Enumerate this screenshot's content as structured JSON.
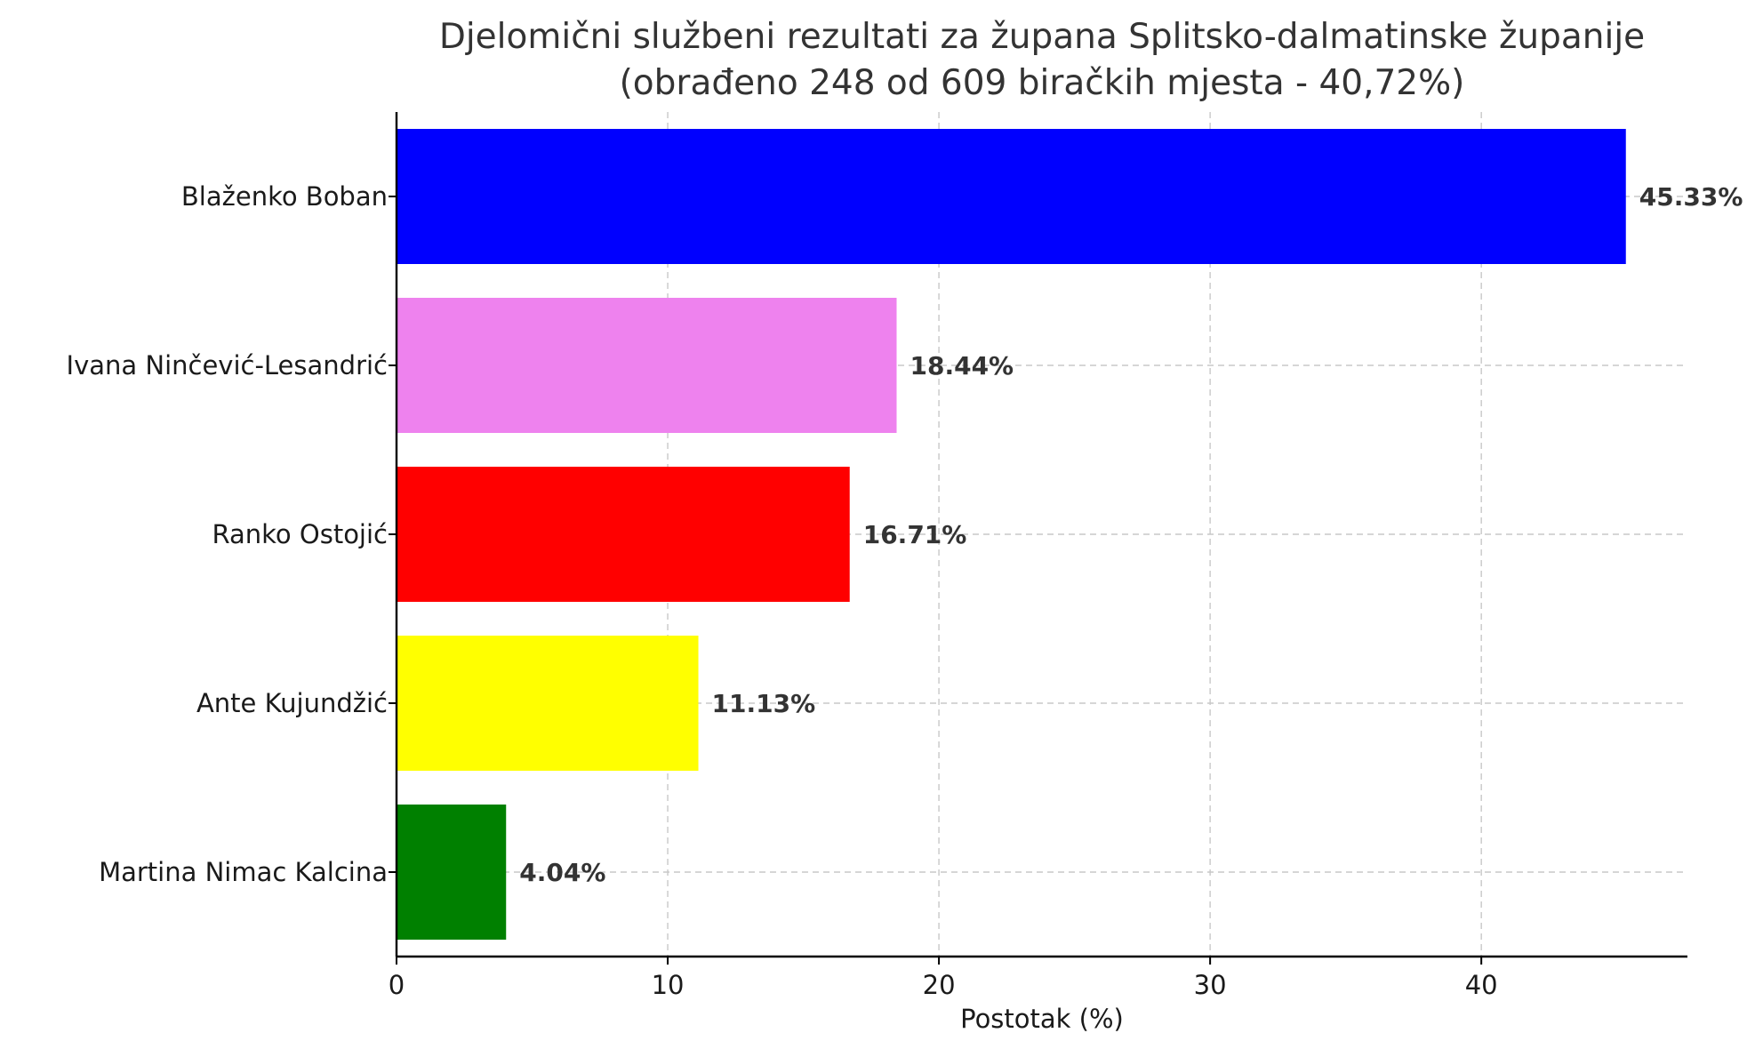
{
  "chart_data": {
    "type": "bar",
    "orientation": "horizontal",
    "title_lines": [
      "Djelomični službeni rezultati za župana Splitsko-dalmatinske županije",
      "(obrađeno 248 od 609 biračkih mjesta - 40,72%)"
    ],
    "xlabel": "Postotak (%)",
    "ylabel": "",
    "xlim": [
      0,
      47.6
    ],
    "xticks": [
      0,
      10,
      20,
      30,
      40
    ],
    "grid": true,
    "categories": [
      "Blaženko Boban",
      "Ivana Ninčević-Lesandrić",
      "Ranko Ostojić",
      "Ante Kujundžić",
      "Martina Nimac Kalcina"
    ],
    "values": [
      45.33,
      18.44,
      16.71,
      11.13,
      4.04
    ],
    "data_labels": [
      "45.33%",
      "18.44%",
      "16.71%",
      "11.13%",
      "4.04%"
    ],
    "colors": [
      "#0000ff",
      "#ee82ee",
      "#ff0000",
      "#ffff00",
      "#008000"
    ]
  }
}
